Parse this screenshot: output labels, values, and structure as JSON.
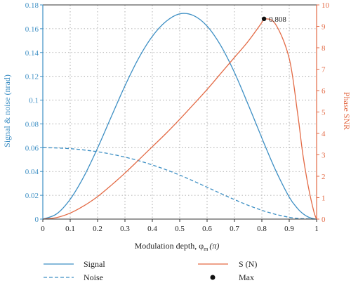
{
  "chart_data": {
    "type": "line",
    "xlabel": "Modulation depth, φ",
    "xlabel_sub": "m",
    "xlabel_unit": "(π)",
    "ylabel_left": "Signal & noise (nrad)",
    "ylabel_right": "Phase SNR",
    "xlim": [
      0,
      1
    ],
    "ylim_left": [
      0,
      0.18
    ],
    "ylim_right": [
      0,
      10
    ],
    "grid": true,
    "legend_position": "bottom",
    "x_ticks": [
      "0",
      "0.1",
      "0.2",
      "0.3",
      "0.4",
      "0.5",
      "0.6",
      "0.7",
      "0.8",
      "0.9",
      "1"
    ],
    "y_left_ticks": [
      "0",
      "0.02",
      "0.04",
      "0.06",
      "0.08",
      "0.1",
      "0.12",
      "0.14",
      "0.16",
      "0.18"
    ],
    "y_right_ticks": [
      "0",
      "1",
      "2",
      "3",
      "4",
      "5",
      "6",
      "7",
      "8",
      "9",
      "10"
    ],
    "x": [
      0,
      0.05,
      0.1,
      0.15,
      0.2,
      0.25,
      0.3,
      0.35,
      0.4,
      0.45,
      0.5,
      0.55,
      0.6,
      0.65,
      0.7,
      0.75,
      0.8,
      0.808,
      0.85,
      0.9,
      0.93,
      0.95,
      0.97,
      0.99,
      1
    ],
    "series": [
      {
        "name": "Signal",
        "axis": "left",
        "style": "solid",
        "color": "#3d8fc4",
        "values": [
          0,
          0.0043,
          0.0167,
          0.0358,
          0.0597,
          0.086,
          0.112,
          0.1352,
          0.1536,
          0.1661,
          0.1725,
          0.1711,
          0.1622,
          0.1458,
          0.1232,
          0.0963,
          0.0682,
          0.0637,
          0.0412,
          0.0185,
          0.009,
          0.0046,
          0.0017,
          0.0002,
          0
        ]
      },
      {
        "name": "Noise",
        "axis": "left",
        "style": "dashed",
        "color": "#3d8fc4",
        "values": [
          0.06,
          0.0598,
          0.0592,
          0.0581,
          0.0566,
          0.0546,
          0.0521,
          0.0491,
          0.0455,
          0.0415,
          0.037,
          0.032,
          0.0268,
          0.0215,
          0.0164,
          0.0116,
          0.0074,
          0.0068,
          0.004,
          0.0015,
          0.0006,
          0.0003,
          0.0001,
          0,
          0
        ]
      },
      {
        "name": "S (N)",
        "axis": "right",
        "style": "solid",
        "color": "#e36a45",
        "values": [
          0,
          0.07,
          0.28,
          0.62,
          1.05,
          1.58,
          2.15,
          2.76,
          3.38,
          4.0,
          4.66,
          5.35,
          6.05,
          6.8,
          7.55,
          8.3,
          9.18,
          9.35,
          9.1,
          7.5,
          5.0,
          3.0,
          1.5,
          0.35,
          0
        ]
      }
    ],
    "max_point": {
      "label": "Max",
      "x": 0.808,
      "y": 9.35,
      "annotation": "0.808"
    }
  }
}
